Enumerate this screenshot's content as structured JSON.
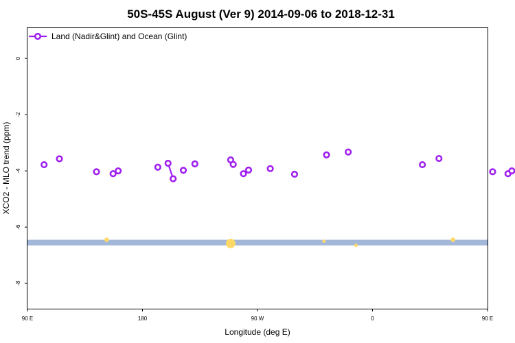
{
  "chart_data": {
    "type": "scatter",
    "title": "50S-45S August (Ver 9)   2014-09-06 to 2018-12-31",
    "xlabel": "Longitude (deg E)",
    "ylabel": "XCO2 - MLO trend (ppm)",
    "xlim": [
      90,
      450
    ],
    "ylim": [
      -8.9,
      1.1
    ],
    "x_ticks": [
      {
        "value": 90,
        "label": "90 E"
      },
      {
        "value": 180,
        "label": "180"
      },
      {
        "value": 270,
        "label": "90 W"
      },
      {
        "value": 360,
        "label": "0"
      },
      {
        "value": 450,
        "label": "90 E"
      },
      {
        "value": 540,
        "label": "180"
      }
    ],
    "y_ticks": [
      0,
      -2,
      -4,
      -6,
      -8
    ],
    "legend": {
      "position": "top-left",
      "entries": [
        "Land (Nadir&Glint) and Ocean (Glint)"
      ]
    },
    "colors": {
      "series": "#a020f0",
      "band": "#a3b8d8",
      "markers": "#ffd966"
    },
    "series": [
      {
        "name": "Land (Nadir&Glint) and Ocean (Glint)",
        "points": [
          {
            "x": 103,
            "y": -3.78
          },
          {
            "x": 115,
            "y": -3.57
          },
          {
            "x": 144,
            "y": -4.03
          },
          {
            "x": 157,
            "y": -4.1
          },
          {
            "x": 161,
            "y": -4.0
          },
          {
            "x": 192,
            "y": -3.87
          },
          {
            "x": 200,
            "y": -3.73
          },
          {
            "x": 204,
            "y": -4.28
          },
          {
            "x": 212,
            "y": -3.98
          },
          {
            "x": 221,
            "y": -3.75
          },
          {
            "x": 249,
            "y": -3.61
          },
          {
            "x": 251,
            "y": -3.77
          },
          {
            "x": 259,
            "y": -4.1
          },
          {
            "x": 263,
            "y": -3.97
          },
          {
            "x": 280,
            "y": -3.92
          },
          {
            "x": 299,
            "y": -4.12
          },
          {
            "x": 324,
            "y": -3.43
          },
          {
            "x": 341,
            "y": -3.33
          },
          {
            "x": 399,
            "y": -3.78
          },
          {
            "x": 412,
            "y": -3.56
          },
          {
            "x": 454,
            "y": -4.03
          },
          {
            "x": 466,
            "y": -4.1
          },
          {
            "x": 469,
            "y": -4.0
          }
        ],
        "connected": [
          [
            6,
            7
          ]
        ]
      }
    ],
    "band": {
      "y_from": -6.65,
      "y_to": -6.45
    },
    "band_markers": [
      {
        "x": 152,
        "y": -6.45,
        "size": 1
      },
      {
        "x": 249,
        "y": -6.58,
        "size": 3
      },
      {
        "x": 322,
        "y": -6.5,
        "size": 0.5
      },
      {
        "x": 347,
        "y": -6.65,
        "size": 0.5
      },
      {
        "x": 423,
        "y": -6.45,
        "size": 1
      }
    ]
  }
}
